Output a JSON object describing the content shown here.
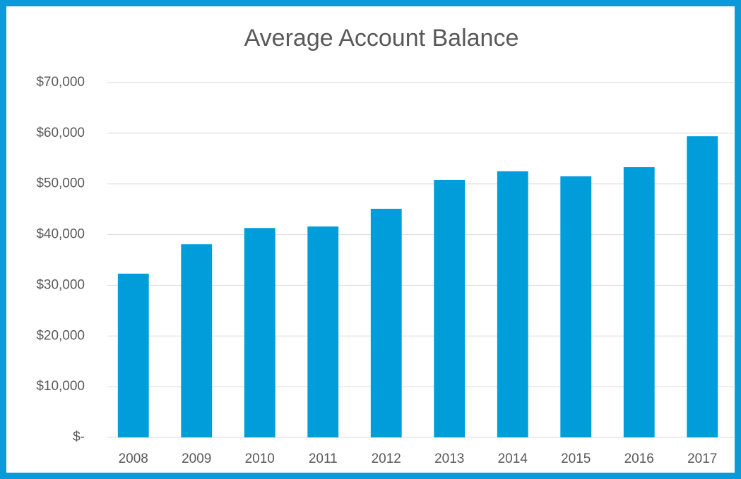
{
  "chart_data": {
    "type": "bar",
    "title": "Average Account Balance",
    "categories": [
      "2008",
      "2009",
      "2010",
      "2011",
      "2012",
      "2013",
      "2014",
      "2015",
      "2016",
      "2017"
    ],
    "values": [
      32300,
      38100,
      41300,
      41600,
      45100,
      50800,
      52500,
      51500,
      53300,
      59400
    ],
    "color": "#009ddb",
    "ylim": [
      0,
      70000
    ],
    "yticks": [
      {
        "value": 0,
        "label": "$-"
      },
      {
        "value": 10000,
        "label": "$10,000"
      },
      {
        "value": 20000,
        "label": "$20,000"
      },
      {
        "value": 30000,
        "label": "$30,000"
      },
      {
        "value": 40000,
        "label": "$40,000"
      },
      {
        "value": 50000,
        "label": "$50,000"
      },
      {
        "value": 60000,
        "label": "$60,000"
      },
      {
        "value": 70000,
        "label": "$70,000"
      }
    ],
    "grid": true
  }
}
